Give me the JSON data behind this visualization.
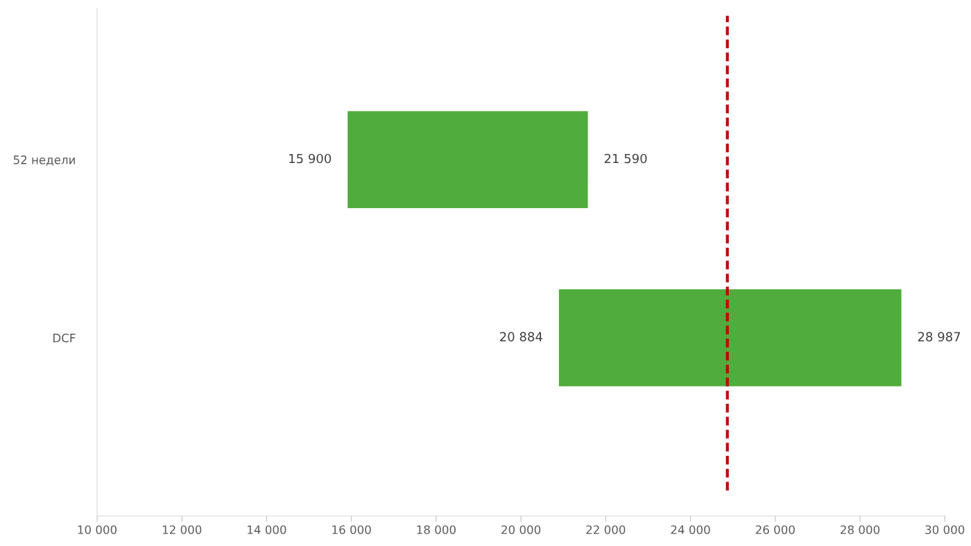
{
  "chart_data": {
    "type": "bar",
    "orientation": "horizontal",
    "categories": [
      "52 недели",
      "DCF"
    ],
    "base": [
      15900,
      20884
    ],
    "values": [
      5690,
      8103
    ],
    "color": "#50ac3c",
    "xlim": [
      10000,
      30000
    ],
    "xticks": [
      {
        "value": 10000,
        "label": "10 000"
      },
      {
        "value": 12000,
        "label": "12 000"
      },
      {
        "value": 14000,
        "label": "14 000"
      },
      {
        "value": 16000,
        "label": "16 000"
      },
      {
        "value": 18000,
        "label": "18 000"
      },
      {
        "value": 20000,
        "label": "20 000"
      },
      {
        "value": 22000,
        "label": "22 000"
      },
      {
        "value": 24000,
        "label": "24 000"
      },
      {
        "value": 26000,
        "label": "26 000"
      },
      {
        "value": 28000,
        "label": "28 000"
      },
      {
        "value": 30000,
        "label": "30 000"
      }
    ],
    "annotations": [
      {
        "text": "15 900",
        "x": 15900,
        "y": "52 недели"
      },
      {
        "text": "21 590",
        "x": 21590,
        "y": "52 недели"
      },
      {
        "text": "20 884",
        "x": 20884,
        "y": "DCF"
      },
      {
        "text": "28 987",
        "x": 28987,
        "y": "DCF"
      }
    ],
    "ref_lines": [
      {
        "axis": "x",
        "value": 24870,
        "color": "#c00000",
        "line_style": "dashed"
      }
    ],
    "grid": false
  }
}
